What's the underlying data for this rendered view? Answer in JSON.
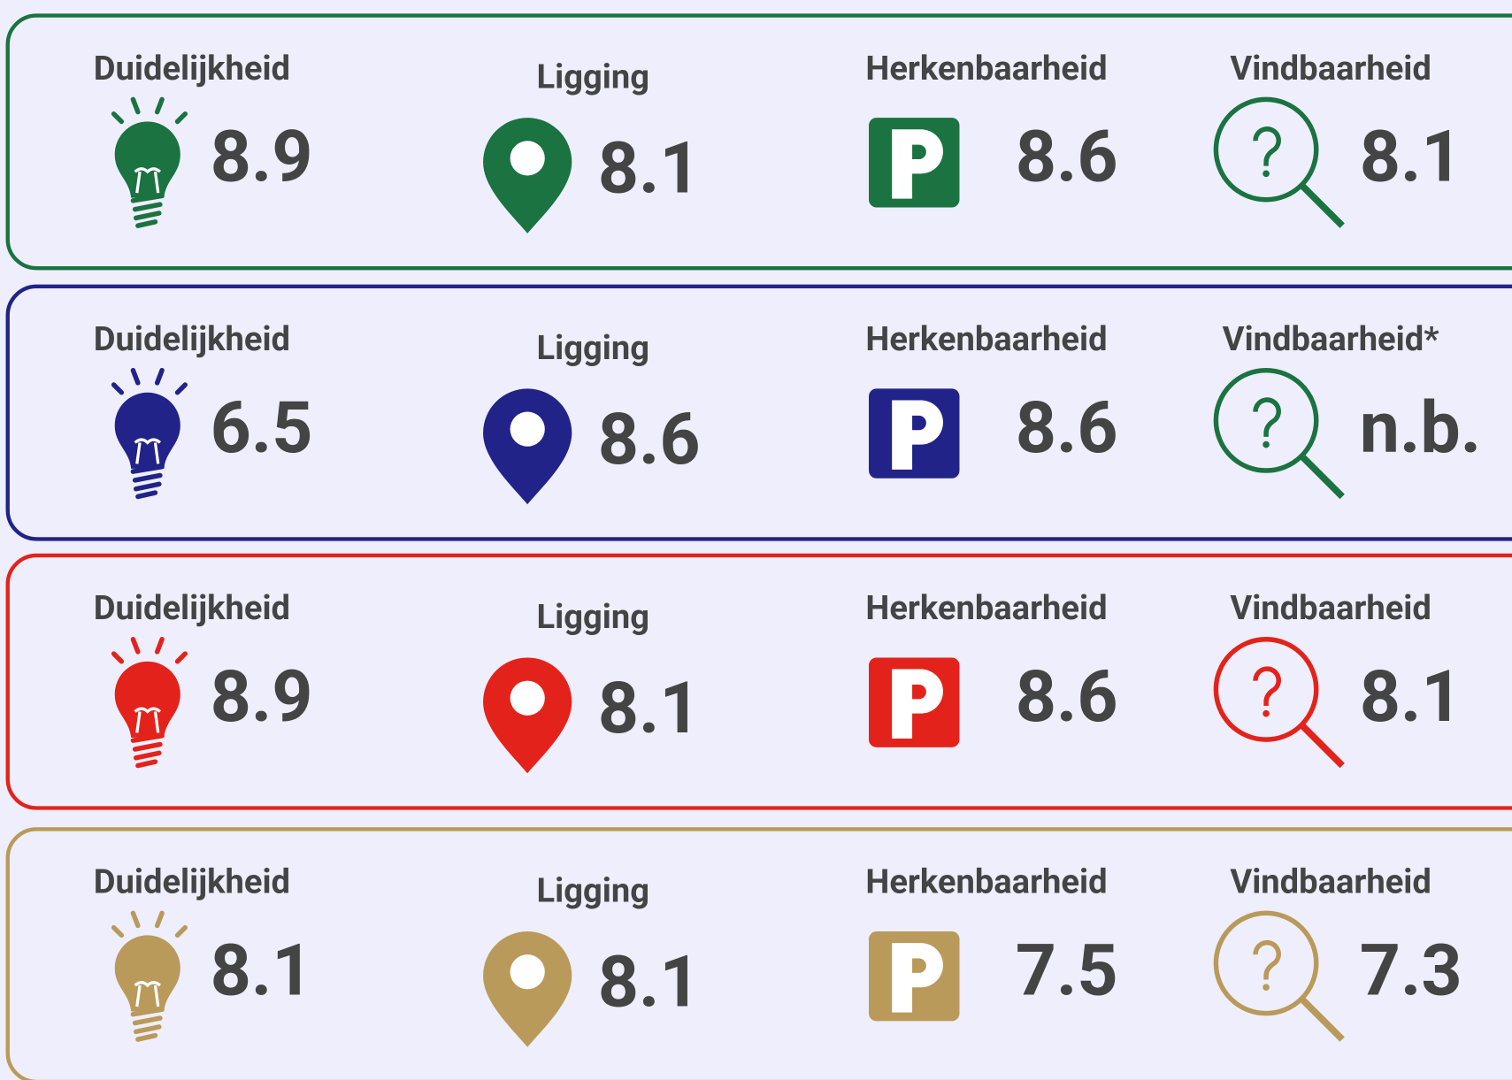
{
  "rows": [
    {
      "color": "#1a7340",
      "items": [
        {
          "label": "Duidelijkheid",
          "score": 8.9
        },
        {
          "label": "Ligging",
          "score": 8.1
        },
        {
          "label": "Herkenbaarheid",
          "score": 8.6
        },
        {
          "label": "Vindbaarheid",
          "score": 8.1
        }
      ]
    },
    {
      "color": "#212388",
      "items": [
        {
          "label": "Duidelijkheid",
          "score": 6.5
        },
        {
          "label": "Ligging",
          "score": 8.6
        },
        {
          "label": "Herkenbaarheid",
          "score": 8.6
        },
        {
          "label": "Vindbaarheid*",
          "score": "n.b.",
          "icon_color": "#1a7340"
        }
      ]
    },
    {
      "color": "#e3231b",
      "items": [
        {
          "label": "Duidelijkheid",
          "score": 8.9
        },
        {
          "label": "Ligging",
          "score": 8.1
        },
        {
          "label": "Herkenbaarheid",
          "score": 8.6
        },
        {
          "label": "Vindbaarheid",
          "score": 8.1
        }
      ]
    },
    {
      "color": "#b99a5a",
      "items": [
        {
          "label": "Duidelijkheid",
          "score": 8.1
        },
        {
          "label": "Ligging",
          "score": 8.1
        },
        {
          "label": "Herkenbaarheid",
          "score": 7.5
        },
        {
          "label": "Vindbaarheid",
          "score": 7.3
        }
      ]
    }
  ]
}
